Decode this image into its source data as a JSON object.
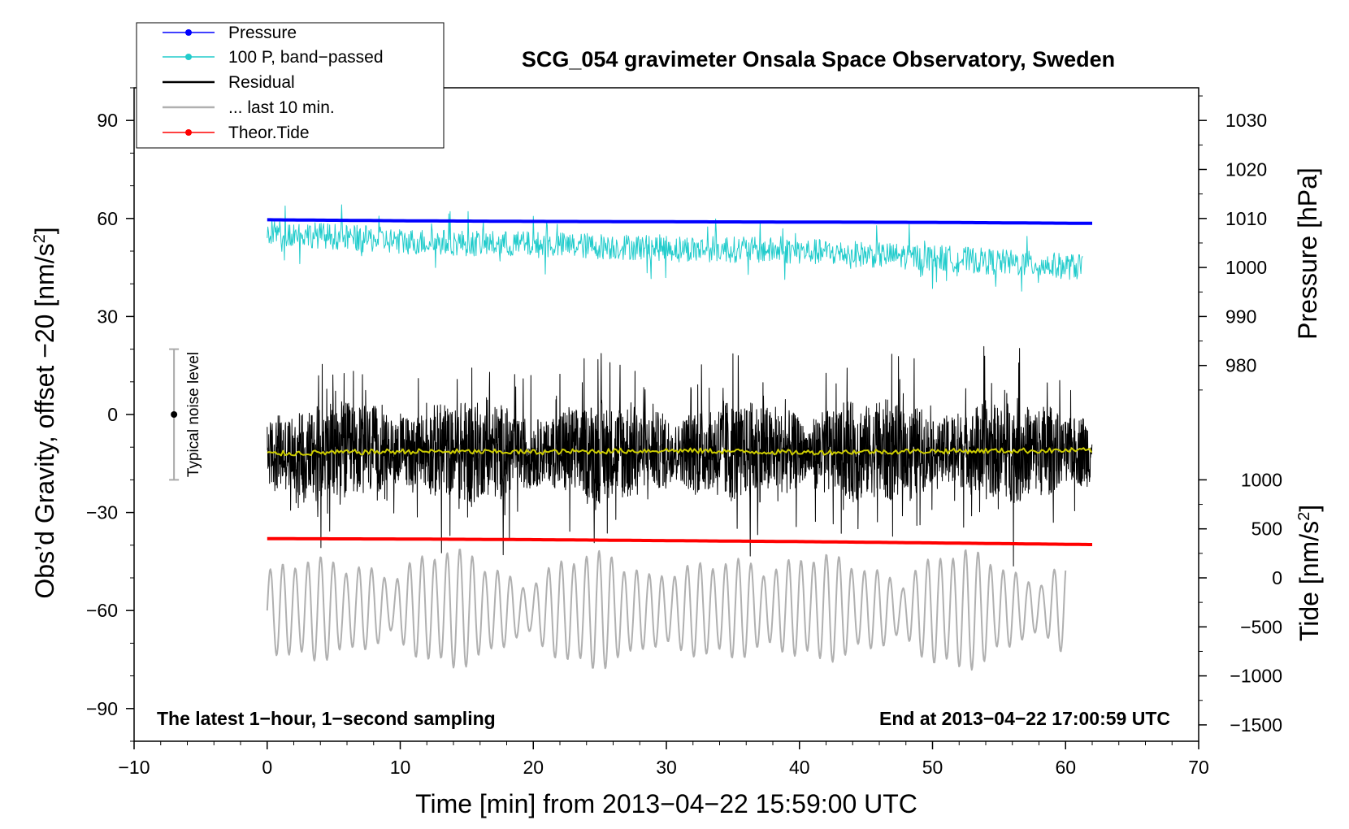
{
  "chart_data": {
    "type": "line",
    "title": "SCG_054 gravimeter Onsala Space Observatory, Sweden",
    "xlabel": "Time [min] from 2013−04−22 15:59:00 UTC",
    "ylabel_left_main": "Obs’d Gravity, offset −20 [nm/s",
    "ylabel_left_sup": "2",
    "ylabel_left_close": "]",
    "ylabel_right_top": "Pressure [hPa]",
    "ylabel_right_bottom_main": "Tide [nm/s",
    "ylabel_right_bottom_sup": "2",
    "ylabel_right_bottom_close": "]",
    "xlim": [
      -10,
      70
    ],
    "ylim": [
      -100,
      100
    ],
    "x_ticks": [
      -10,
      0,
      10,
      20,
      30,
      40,
      50,
      60,
      70
    ],
    "x_tick_labels": [
      "−10",
      "0",
      "10",
      "20",
      "30",
      "40",
      "50",
      "60",
      "70"
    ],
    "y_ticks": [
      90,
      60,
      30,
      0,
      -30,
      -60,
      -90
    ],
    "y_tick_labels": [
      "90",
      "60",
      "30",
      "0",
      "−30",
      "−60",
      "−90"
    ],
    "pressure_axis": {
      "ticks": [
        1030,
        1020,
        1010,
        1000,
        990,
        980
      ],
      "tick_labels": [
        "1030",
        "1020",
        "1010",
        "1000",
        "990",
        "980"
      ],
      "gravity_at_1010": 60,
      "gravity_per_hpa": 1.5
    },
    "tide_axis": {
      "ticks": [
        1000,
        500,
        0,
        -500,
        -1000,
        -1500
      ],
      "tick_labels": [
        "1000",
        "500",
        "0",
        "−500",
        "−1000",
        "−1500"
      ],
      "gravity_at_zero": -50,
      "gravity_per_unit": 0.03
    },
    "series": [
      {
        "name": "Pressure",
        "color": "#0000ff",
        "x": [
          0,
          10,
          20,
          30,
          40,
          50,
          62
        ],
        "values": [
          59.6,
          59.3,
          59.1,
          59.0,
          58.9,
          58.8,
          58.5
        ],
        "axis": "gravity"
      },
      {
        "name": "100 P, band−passed",
        "color": "#22cccc",
        "x": [
          0,
          10,
          20,
          30,
          40,
          50,
          61.3
        ],
        "values": [
          56,
          53,
          52,
          51,
          50,
          48,
          45
        ],
        "amplitude": 4,
        "axis": "gravity"
      },
      {
        "name": "Residual",
        "color": "#000000",
        "x": [
          0,
          10,
          20,
          30,
          40,
          50,
          62
        ],
        "values": [
          -12,
          -11,
          -11.5,
          -11,
          -11.5,
          -11,
          -11
        ],
        "amplitude": 13,
        "axis": "gravity"
      },
      {
        "name": "... last 10 min.",
        "color": "#b0b0b0",
        "x": [
          0,
          10,
          20,
          30,
          40,
          50,
          60
        ],
        "values": [
          -60,
          -59,
          -60,
          -60,
          -59,
          -60,
          -59
        ],
        "amplitude": 13,
        "axis": "gravity"
      },
      {
        "name": "Theor.Tide",
        "color": "#ff0000",
        "x": [
          0,
          10,
          20,
          30,
          40,
          50,
          62
        ],
        "values": [
          -38.0,
          -38.1,
          -38.3,
          -38.6,
          -38.9,
          -39.3,
          -39.8
        ],
        "axis": "gravity"
      }
    ],
    "smoothed_residual": {
      "color": "#cccc00",
      "x": [
        0,
        10,
        20,
        30,
        40,
        50,
        62
      ],
      "values": [
        -12,
        -11.3,
        -11.5,
        -11,
        -11.6,
        -11.2,
        -11
      ]
    },
    "noise_bar": {
      "label": "Typical noise level",
      "x": -7,
      "center": 0,
      "low": -20,
      "high": 20
    },
    "annotations": {
      "bottom_left": "The latest 1−hour, 1−second sampling",
      "bottom_right": "End at 2013−04−22 17:00:59 UTC"
    },
    "legend_position": "top-left",
    "grid": false
  }
}
